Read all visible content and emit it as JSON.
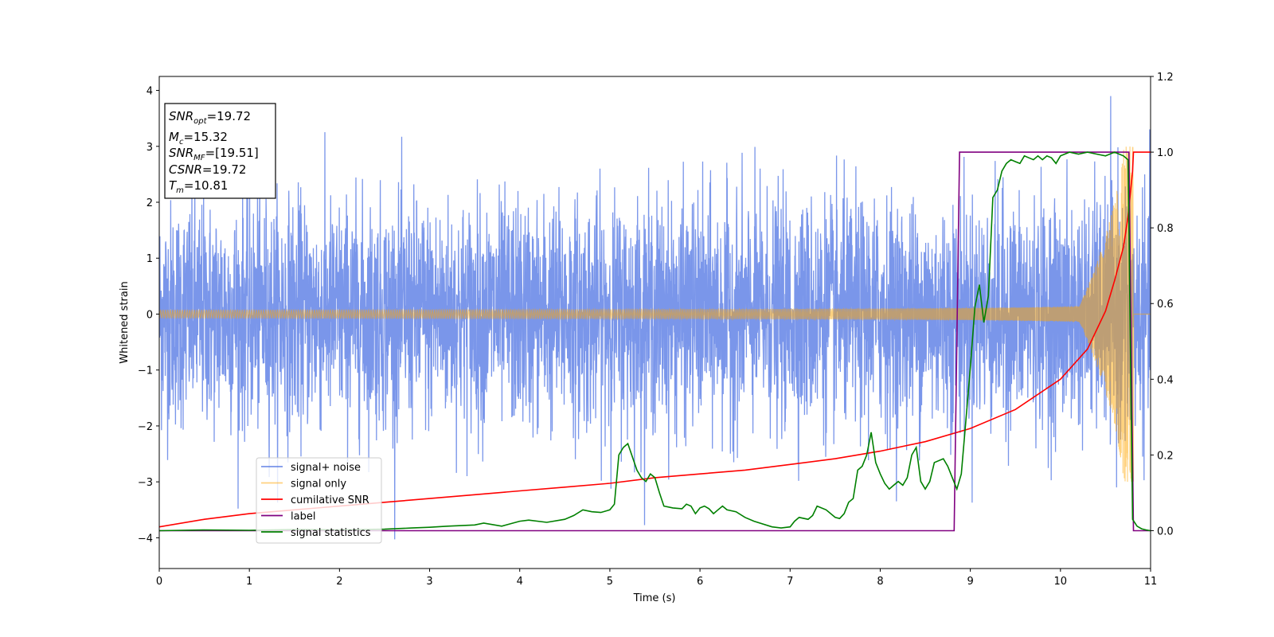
{
  "chart_data": {
    "type": "line",
    "title": "",
    "xlabel": "Time (s)",
    "ylabel": "Whitened strain",
    "xlim": [
      0,
      11
    ],
    "ylim_left": [
      -4.55,
      4.25
    ],
    "ylim_right": [
      -0.1,
      1.2
    ],
    "x_ticks": [
      0,
      1,
      2,
      3,
      4,
      5,
      6,
      7,
      8,
      9,
      10,
      11
    ],
    "y_ticks_left": [
      -4,
      -3,
      -2,
      -1,
      0,
      1,
      2,
      3,
      4
    ],
    "y_ticks_right": [
      0.0,
      0.2,
      0.4,
      0.6,
      0.8,
      1.0,
      1.2
    ],
    "grid": false,
    "legend_placement": "lower-left",
    "annotation": {
      "lines": [
        {
          "var": "SNR",
          "sub": "opt",
          "value": "=19.72"
        },
        {
          "var": "M",
          "sub": "c",
          "value": "=15.32"
        },
        {
          "var": "SNR",
          "sub": "MF",
          "value": "=[19.51]"
        },
        {
          "var": "CSNR",
          "sub": "",
          "value": "=19.72"
        },
        {
          "var": "T",
          "sub": "m",
          "value": "=10.81"
        }
      ]
    },
    "series": [
      {
        "name": "signal+ noise",
        "axis": "left",
        "color": "#4169e1",
        "kind": "noise",
        "sigma": 1.0,
        "x_range": [
          0,
          11
        ]
      },
      {
        "name": "signal only",
        "axis": "left",
        "color": "#ffa500",
        "kind": "chirp",
        "t_merge": 10.81,
        "x_range": [
          0,
          11
        ],
        "amplitude_peak": 3.0
      },
      {
        "name": "cumilative SNR",
        "axis": "right",
        "color": "#ff0000",
        "x": [
          0,
          0.5,
          1,
          1.5,
          2,
          2.5,
          3,
          3.5,
          4,
          4.5,
          5,
          5.5,
          6,
          6.5,
          7,
          7.5,
          8,
          8.5,
          9,
          9.5,
          10,
          10.3,
          10.5,
          10.6,
          10.7,
          10.75,
          10.8,
          10.81,
          11
        ],
        "y": [
          0.01,
          0.03,
          0.045,
          0.055,
          0.065,
          0.075,
          0.085,
          0.095,
          0.105,
          0.115,
          0.125,
          0.14,
          0.15,
          0.16,
          0.175,
          0.19,
          0.21,
          0.235,
          0.27,
          0.32,
          0.4,
          0.48,
          0.58,
          0.66,
          0.75,
          0.83,
          0.95,
          1.0,
          1.0
        ]
      },
      {
        "name": "label",
        "axis": "right",
        "color": "#800080",
        "x": [
          0,
          8.82,
          8.88,
          10.76,
          10.81,
          11
        ],
        "y": [
          0.0,
          0.0,
          1.0,
          1.0,
          0.0,
          0.0
        ]
      },
      {
        "name": "signal statistics",
        "axis": "right",
        "color": "#008000",
        "x": [
          0,
          0.5,
          1,
          1.5,
          2,
          2.5,
          2.8,
          3.0,
          3.2,
          3.5,
          3.6,
          3.8,
          4.0,
          4.1,
          4.3,
          4.5,
          4.6,
          4.7,
          4.8,
          4.9,
          5.0,
          5.05,
          5.1,
          5.15,
          5.2,
          5.3,
          5.35,
          5.4,
          5.45,
          5.5,
          5.55,
          5.6,
          5.7,
          5.8,
          5.85,
          5.9,
          5.95,
          6.0,
          6.05,
          6.1,
          6.15,
          6.2,
          6.25,
          6.3,
          6.4,
          6.5,
          6.6,
          6.8,
          6.9,
          7.0,
          7.05,
          7.1,
          7.2,
          7.25,
          7.3,
          7.4,
          7.5,
          7.55,
          7.6,
          7.65,
          7.7,
          7.75,
          7.8,
          7.85,
          7.9,
          7.95,
          8.0,
          8.05,
          8.1,
          8.15,
          8.2,
          8.25,
          8.3,
          8.35,
          8.4,
          8.45,
          8.5,
          8.55,
          8.6,
          8.7,
          8.75,
          8.8,
          8.85,
          8.9,
          8.95,
          9.0,
          9.05,
          9.1,
          9.15,
          9.2,
          9.25,
          9.3,
          9.35,
          9.4,
          9.45,
          9.5,
          9.55,
          9.6,
          9.65,
          9.7,
          9.75,
          9.8,
          9.85,
          9.9,
          9.95,
          10.0,
          10.1,
          10.2,
          10.3,
          10.4,
          10.5,
          10.6,
          10.7,
          10.75,
          10.8,
          10.85,
          10.9,
          10.95,
          11
        ],
        "y": [
          0.0,
          0.002,
          0.001,
          0.003,
          0.002,
          0.004,
          0.007,
          0.009,
          0.012,
          0.015,
          0.02,
          0.012,
          0.025,
          0.028,
          0.022,
          0.03,
          0.04,
          0.055,
          0.05,
          0.048,
          0.055,
          0.07,
          0.2,
          0.22,
          0.23,
          0.16,
          0.14,
          0.13,
          0.15,
          0.14,
          0.1,
          0.065,
          0.06,
          0.058,
          0.07,
          0.065,
          0.045,
          0.06,
          0.065,
          0.058,
          0.045,
          0.055,
          0.065,
          0.055,
          0.05,
          0.035,
          0.025,
          0.01,
          0.007,
          0.01,
          0.025,
          0.035,
          0.03,
          0.04,
          0.065,
          0.055,
          0.035,
          0.032,
          0.045,
          0.075,
          0.085,
          0.16,
          0.17,
          0.2,
          0.26,
          0.18,
          0.15,
          0.125,
          0.11,
          0.12,
          0.13,
          0.12,
          0.14,
          0.2,
          0.22,
          0.13,
          0.11,
          0.13,
          0.18,
          0.19,
          0.17,
          0.14,
          0.11,
          0.15,
          0.29,
          0.43,
          0.59,
          0.65,
          0.55,
          0.62,
          0.88,
          0.9,
          0.95,
          0.97,
          0.98,
          0.975,
          0.97,
          0.99,
          0.985,
          0.98,
          0.99,
          0.98,
          0.99,
          0.985,
          0.97,
          0.99,
          1.0,
          0.995,
          1.0,
          0.995,
          0.99,
          1.0,
          0.99,
          0.98,
          0.03,
          0.012,
          0.005,
          0.002,
          0.0
        ]
      }
    ]
  }
}
